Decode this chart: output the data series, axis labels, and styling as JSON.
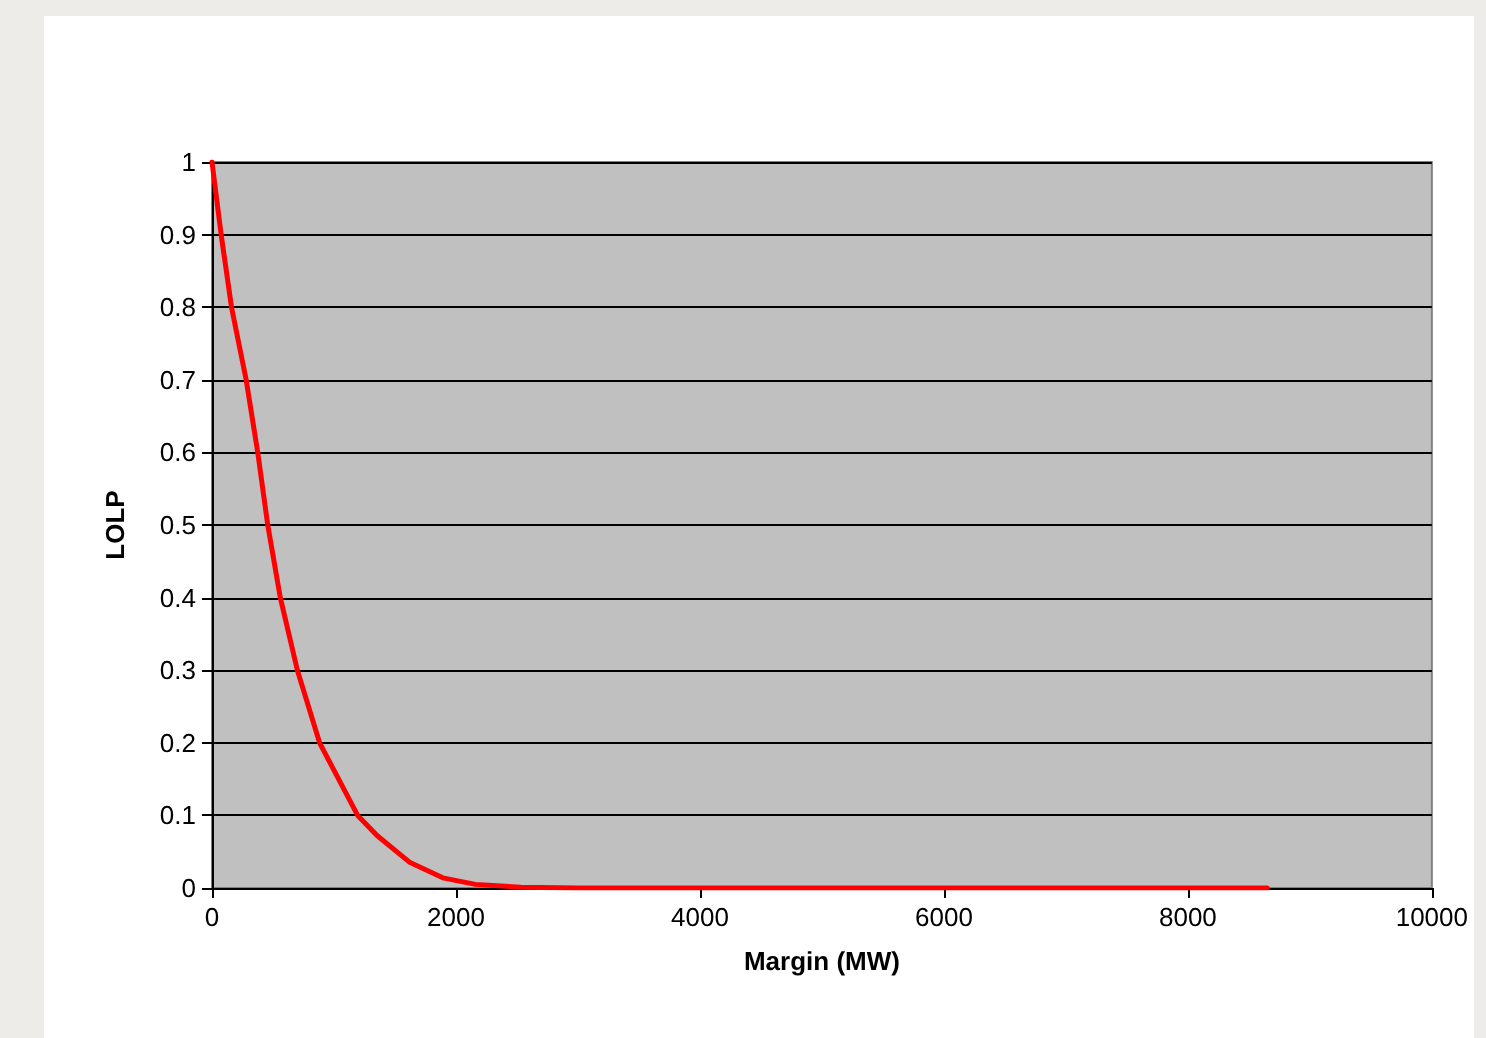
{
  "chart_data": {
    "type": "line",
    "xlabel": "Margin (MW)",
    "ylabel": "LOLP",
    "x": [
      0,
      75,
      160,
      280,
      375,
      457,
      560,
      700,
      882,
      1194,
      1355,
      1624,
      1892,
      2160,
      2532,
      3000,
      4000,
      5000,
      6000,
      7000,
      8000,
      8650
    ],
    "series": [
      {
        "color": "#ff0000",
        "values": [
          1,
          0.9,
          0.8,
          0.7,
          0.6,
          0.5,
          0.4,
          0.3,
          0.2,
          0.1,
          0.072,
          0.035,
          0.014,
          0.005,
          0.001,
          0,
          0,
          0,
          0,
          0,
          0,
          0
        ]
      }
    ],
    "xlim": [
      0,
      10000
    ],
    "xticks": [
      0,
      2000,
      4000,
      6000,
      8000,
      10000
    ],
    "ylim": [
      0,
      1
    ],
    "yticks": [
      0,
      0.1,
      0.2,
      0.3,
      0.4,
      0.5,
      0.6,
      0.7,
      0.8,
      0.9,
      1
    ],
    "grid": "y",
    "marker": "none",
    "line_style": "solid"
  }
}
